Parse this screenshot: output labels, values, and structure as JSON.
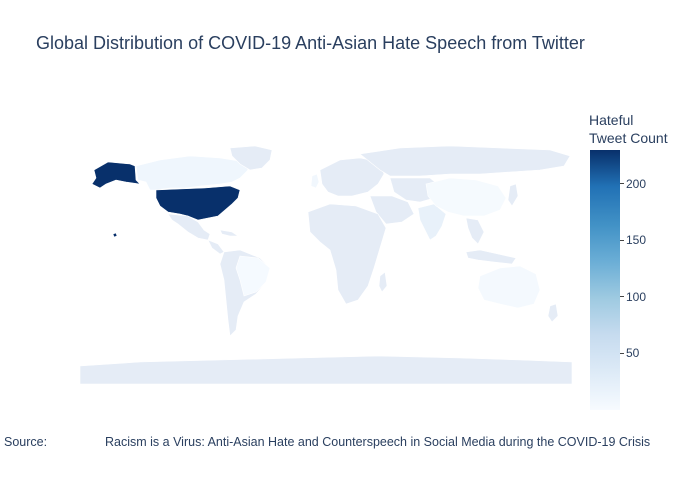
{
  "chart_data": {
    "type": "choropleth",
    "title": "Global Distribution of COVID-19 Anti-Asian Hate Speech from Twitter",
    "colorbar": {
      "title": "Hateful Tweet Count",
      "title_lines": [
        "Hateful",
        "Tweet Count"
      ],
      "range": [
        0,
        230
      ],
      "ticks": [
        50,
        100,
        150,
        200
      ],
      "tick_labels": [
        "50",
        "100",
        "150",
        "200"
      ],
      "colorscale": [
        "#f7fbff",
        "#deebf7",
        "#c6dbef",
        "#9ecae1",
        "#6baed6",
        "#4292c6",
        "#2171b5",
        "#08306b"
      ]
    },
    "locations": [
      {
        "name": "United States",
        "value": 230
      },
      {
        "name": "India",
        "value": 20
      },
      {
        "name": "Canada",
        "value": 10
      },
      {
        "name": "United Kingdom",
        "value": 8
      },
      {
        "name": "Australia",
        "value": 4
      },
      {
        "name": "China",
        "value": 3
      },
      {
        "name": "Brazil",
        "value": 2
      }
    ],
    "no_data_color": "#e5ecf6"
  },
  "annotations": {
    "source_label": "Source:",
    "source_text": "Racism is a Virus: Anti-Asian Hate and Counterspeech in Social Media during the COVID-19 Crisis"
  }
}
